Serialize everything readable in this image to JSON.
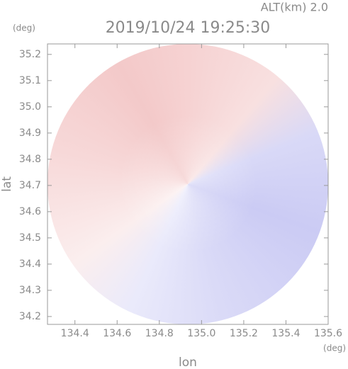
{
  "chart_data": {
    "type": "radar-ppi",
    "title": "2019/10/24 19:25:30",
    "subtitle": "ALT(km) 2.0",
    "x_label": "lon",
    "y_label": "lat",
    "x_unit": "(deg)",
    "y_unit": "(deg)",
    "xlim": [
      134.27,
      135.6
    ],
    "ylim": [
      34.17,
      35.24
    ],
    "xticks": [
      134.4,
      134.6,
      134.8,
      {
        "value": 135.0,
        "label": "135.0"
      },
      135.2,
      135.4,
      135.6
    ],
    "yticks": [
      34.2,
      34.3,
      34.4,
      34.5,
      34.6,
      34.7,
      34.8,
      34.9,
      {
        "value": 35.0,
        "label": "35.0"
      },
      35.1,
      35.2
    ]
  }
}
